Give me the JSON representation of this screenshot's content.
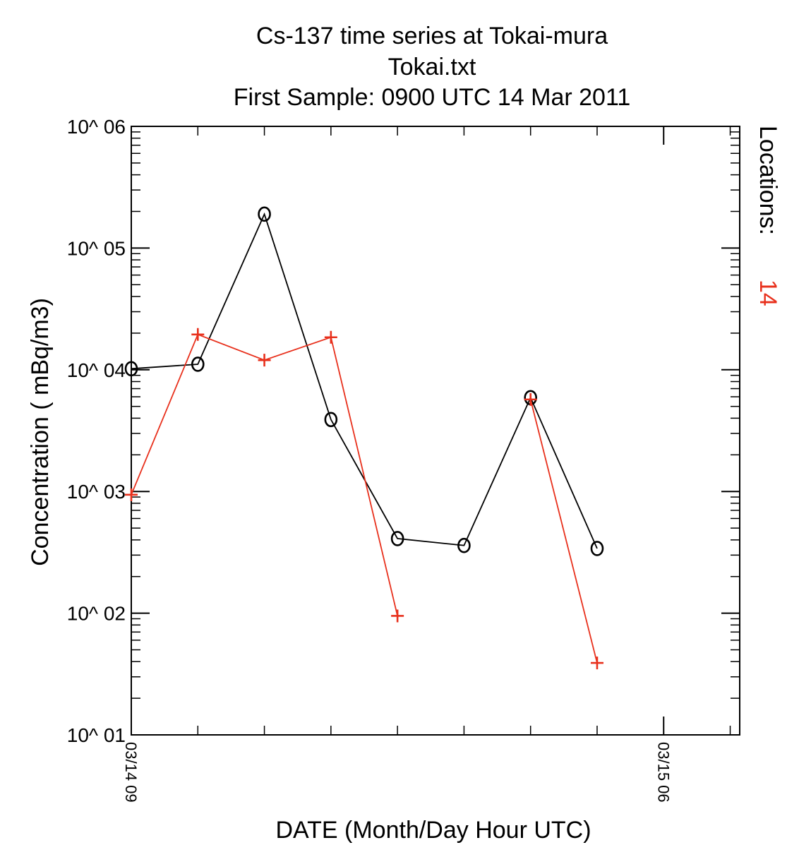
{
  "chart_data": {
    "type": "line",
    "title_lines": [
      "Cs-137 time series at Tokai-mura",
      "Tokai.txt",
      "First Sample: 0900 UTC 14 Mar 2011"
    ],
    "xlabel": "DATE (Month/Day Hour UTC)",
    "ylabel": "Concentration ( mBq/m3)",
    "y_scale": "log",
    "ylim": [
      10,
      1000000
    ],
    "y_tick_labels": [
      "10^ 01",
      "10^ 02",
      "10^ 03",
      "10^ 04",
      "10^ 05",
      "10^ 06"
    ],
    "x_tick_labels": [
      "03/14 09",
      "03/15 06"
    ],
    "x_units": "hours since 0900 UTC 14 Mar 2011",
    "xlim": [
      0,
      24
    ],
    "x": [
      0,
      2.625,
      5.25,
      7.875,
      10.5,
      13.125,
      15.75,
      18.375
    ],
    "series": [
      {
        "marker": "o",
        "color": "#000000",
        "values": [
          10200,
          11100,
          190000,
          3900,
          410,
          360,
          5900,
          340
        ]
      },
      {
        "marker": "+",
        "color": "#e8301c",
        "values": [
          940,
          19500,
          12000,
          18500,
          95,
          null,
          5700,
          39
        ]
      }
    ],
    "legend": {
      "label": "Locations:",
      "value": "14",
      "value_color": "#e8301c",
      "orientation": "rotated 90 degrees, right side"
    }
  }
}
